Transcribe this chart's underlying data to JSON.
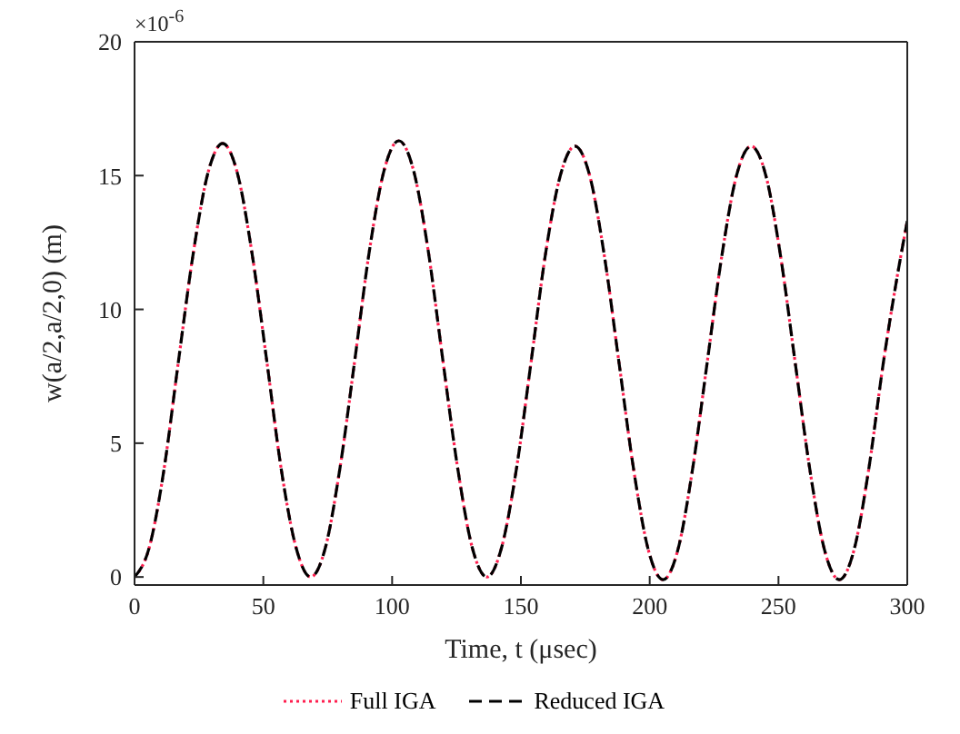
{
  "chart_data": {
    "type": "line",
    "xlabel": "Time, t (μsec)",
    "ylabel": "w(a/2,a/2,0) (m)",
    "annotations": [
      "×10$^{-6}$"
    ],
    "x": [
      0,
      5.7,
      11.4,
      17.1,
      22.8,
      28.5,
      34.2,
      39.9,
      45.6,
      51.3,
      57,
      62.7,
      68.4,
      74.1,
      79.8,
      85.5,
      91.2,
      96.9,
      102.6,
      108.3,
      114,
      119.7,
      125.4,
      131.1,
      136.8,
      142.5,
      148.2,
      153.9,
      159.6,
      165.3,
      171,
      176.7,
      182.4,
      188.1,
      193.8,
      199.5,
      205.2,
      210.9,
      216.6,
      222.3,
      228,
      233.7,
      239.4,
      245.1,
      250.8,
      256.5,
      262.2,
      267.9,
      273.6,
      279.3,
      285,
      290.7,
      296.4,
      300
    ],
    "series": [
      {
        "name": "Full IGA",
        "color": "#ff1f4f",
        "line_style": "dotted",
        "values": [
          0,
          1.1,
          4.0,
          8.1,
          12.1,
          15.1,
          16.2,
          15.1,
          12.1,
          8.1,
          4.0,
          1.1,
          0,
          1.1,
          4.1,
          8.1,
          12.2,
          15.2,
          16.3,
          15.2,
          12.2,
          8.1,
          4.1,
          1.1,
          0,
          1.1,
          4.0,
          8.0,
          12.1,
          15.0,
          16.1,
          15.0,
          12.0,
          8.0,
          4.0,
          1.0,
          -0.1,
          1.0,
          4.0,
          8.0,
          12.0,
          15.0,
          16.1,
          15.0,
          12.0,
          8.0,
          4.0,
          1.0,
          -0.1,
          1.0,
          4.0,
          8.0,
          11.4,
          13.3
        ]
      },
      {
        "name": "Reduced IGA",
        "color": "#000000",
        "line_style": "dashed",
        "values": [
          0,
          1.1,
          4.0,
          8.1,
          12.1,
          15.1,
          16.2,
          15.1,
          12.1,
          8.1,
          4.0,
          1.1,
          0,
          1.1,
          4.1,
          8.1,
          12.2,
          15.2,
          16.3,
          15.2,
          12.2,
          8.1,
          4.1,
          1.1,
          0,
          1.1,
          4.0,
          8.0,
          12.1,
          15.0,
          16.1,
          15.0,
          12.0,
          8.0,
          4.0,
          1.0,
          -0.1,
          1.0,
          4.0,
          8.0,
          12.0,
          15.0,
          16.1,
          15.0,
          12.0,
          8.0,
          4.0,
          1.0,
          -0.1,
          1.0,
          4.0,
          8.0,
          11.4,
          13.3
        ]
      }
    ],
    "xlim": [
      0,
      300
    ],
    "xticks": [
      0,
      50,
      100,
      150,
      200,
      250,
      300
    ],
    "ylim": [
      -0.3,
      20
    ],
    "yticks": [
      0,
      5,
      10,
      15,
      20
    ],
    "grid": false,
    "legend": "bottom",
    "marker": "none"
  }
}
